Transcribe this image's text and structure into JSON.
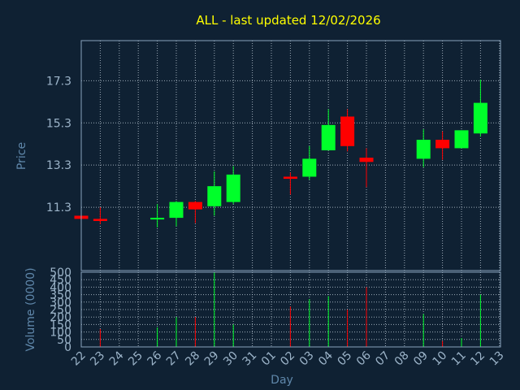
{
  "chart_data": {
    "type": "candlestick",
    "title": "ALL - last updated 12/02/2026",
    "xlabel": "Day",
    "ylabel_price": "Price",
    "ylabel_volume": "Volume (0000)",
    "x_ticks": [
      "22",
      "23",
      "24",
      "25",
      "26",
      "27",
      "28",
      "29",
      "30",
      "31",
      "01",
      "02",
      "03",
      "04",
      "05",
      "06",
      "07",
      "08",
      "09",
      "10",
      "11",
      "12",
      "13"
    ],
    "price_ticks": [
      "11.3",
      "13.3",
      "15.3",
      "17.3"
    ],
    "price_tick_values": [
      11.3,
      13.3,
      15.3,
      17.3
    ],
    "price_ylim": [
      8.3,
      19.2
    ],
    "volume_ticks": [
      "0",
      "50",
      "100",
      "150",
      "200",
      "250",
      "300",
      "350",
      "400",
      "450",
      "500"
    ],
    "volume_tick_values": [
      0,
      50,
      100,
      150,
      200,
      250,
      300,
      350,
      400,
      450,
      500
    ],
    "volume_ylim": [
      0,
      500
    ],
    "grid": true,
    "colors": {
      "background": "#0f2133",
      "plot_border": "#8aa4bc",
      "grid": "#c0cdd8",
      "title": "#ffff00",
      "axis_label": "#5f87aa",
      "tick_label": "#9cb4c9",
      "up": "#00ff2a",
      "down": "#ff0000"
    },
    "candles": [
      {
        "x": 0,
        "open": 10.9,
        "close": 10.75,
        "high": 10.95,
        "low": 10.7,
        "volume": 0
      },
      {
        "x": 1,
        "open": 10.75,
        "close": 10.65,
        "high": 11.3,
        "low": 10.5,
        "volume": 120
      },
      {
        "x": 4,
        "open": 10.75,
        "close": 10.8,
        "high": 11.45,
        "low": 10.35,
        "volume": 130
      },
      {
        "x": 5,
        "open": 10.8,
        "close": 11.55,
        "high": 11.6,
        "low": 10.4,
        "volume": 200
      },
      {
        "x": 6,
        "open": 11.55,
        "close": 11.2,
        "high": 11.6,
        "low": 10.55,
        "volume": 200
      },
      {
        "x": 7,
        "open": 11.35,
        "close": 12.3,
        "high": 13.0,
        "low": 10.9,
        "volume": 500
      },
      {
        "x": 8,
        "open": 11.55,
        "close": 12.85,
        "high": 13.25,
        "low": 11.45,
        "volume": 150
      },
      {
        "x": 11,
        "open": 12.75,
        "close": 12.65,
        "high": 12.95,
        "low": 11.9,
        "volume": 270
      },
      {
        "x": 12,
        "open": 12.75,
        "close": 13.6,
        "high": 14.2,
        "low": 12.6,
        "volume": 320
      },
      {
        "x": 13,
        "open": 14.0,
        "close": 15.2,
        "high": 15.95,
        "low": 14.0,
        "volume": 340
      },
      {
        "x": 14,
        "open": 15.6,
        "close": 14.2,
        "high": 15.95,
        "low": 13.95,
        "volume": 250
      },
      {
        "x": 15,
        "open": 13.65,
        "close": 13.45,
        "high": 14.1,
        "low": 12.25,
        "volume": 400
      },
      {
        "x": 18,
        "open": 13.6,
        "close": 14.5,
        "high": 15.0,
        "low": 13.2,
        "volume": 220
      },
      {
        "x": 19,
        "open": 14.5,
        "close": 14.1,
        "high": 14.9,
        "low": 13.55,
        "volume": 40
      },
      {
        "x": 20,
        "open": 14.1,
        "close": 14.95,
        "high": 14.95,
        "low": 14.1,
        "volume": 60
      },
      {
        "x": 21,
        "open": 14.8,
        "close": 16.25,
        "high": 17.35,
        "low": 14.65,
        "volume": 350
      }
    ]
  }
}
